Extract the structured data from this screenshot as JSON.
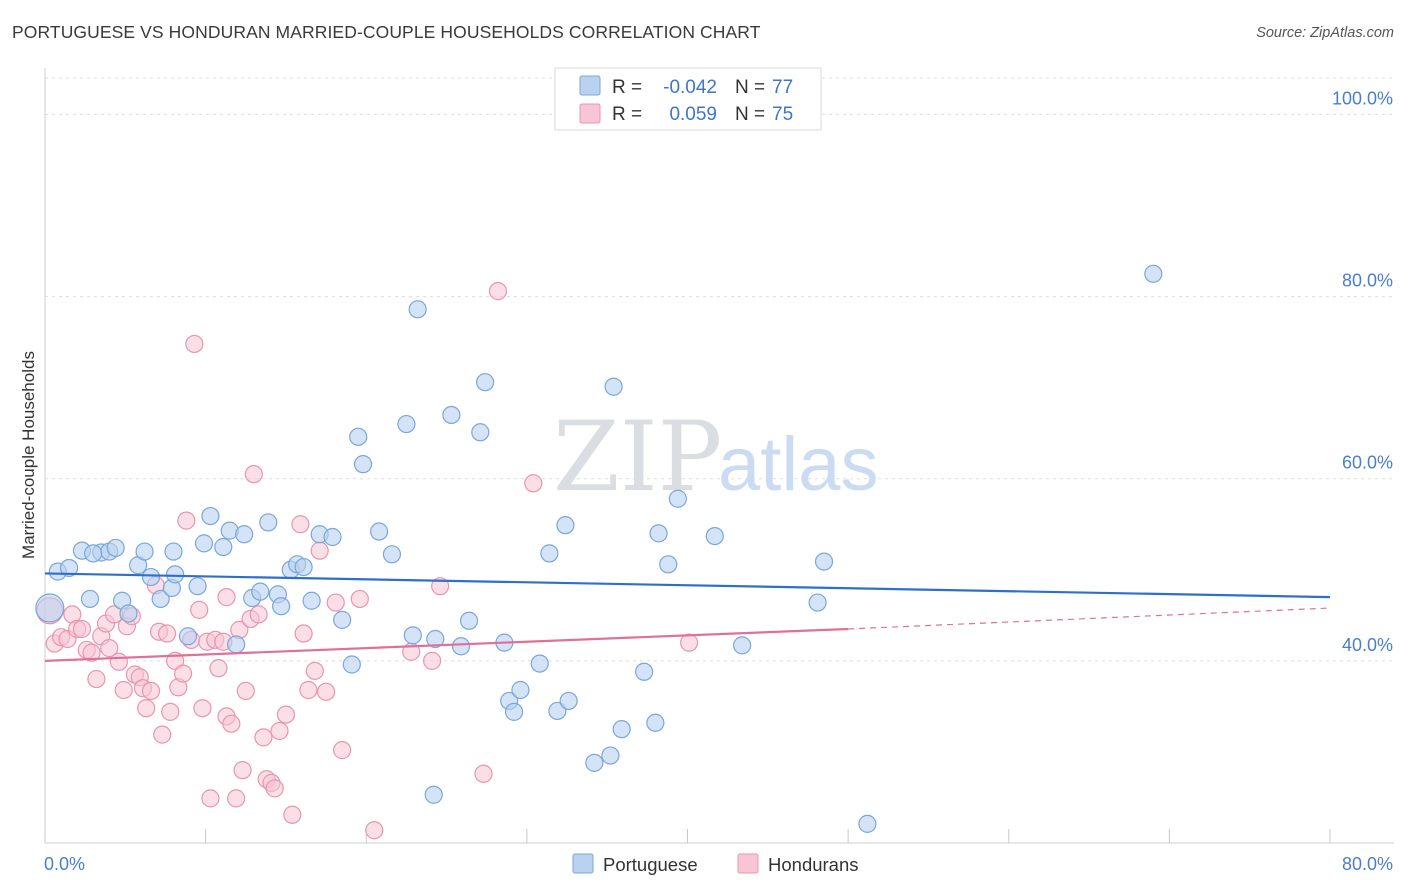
{
  "header": {
    "title": "PORTUGUESE VS HONDURAN MARRIED-COUPLE HOUSEHOLDS CORRELATION CHART",
    "source": "Source: ZipAtlas.com"
  },
  "legend_top": {
    "rows": [
      {
        "r_label": "R =",
        "r_value": "-0.042",
        "n_label": "N =",
        "n_value": "77"
      },
      {
        "r_label": "R =",
        "r_value": "0.059",
        "n_label": "N =",
        "n_value": "75"
      }
    ]
  },
  "legend_bottom": {
    "portuguese": "Portuguese",
    "hondurans": "Hondurans"
  },
  "watermark": {
    "zip": "ZIP",
    "atlas": "atlas"
  },
  "colors": {
    "blue_fill": "#b8d2f0",
    "blue_stroke": "#7aa6db",
    "blue_line": "#2f6fcc",
    "pink_fill": "#f7c5d4",
    "pink_stroke": "#e895b0",
    "pink_line": "#e0709a",
    "grid": "#dddddd",
    "tick_text": "#4a7fc9"
  },
  "chart_data": {
    "type": "scatter",
    "title": "PORTUGUESE VS HONDURAN MARRIED-COUPLE HOUSEHOLDS CORRELATION CHART",
    "xlabel": "",
    "ylabel": "Married-couple Households",
    "xlim": [
      0,
      80
    ],
    "ylim": [
      20,
      104
    ],
    "x_tick_labels": [
      "0.0%",
      "80.0%"
    ],
    "y_ticks": [
      40,
      60,
      80,
      100
    ],
    "y_tick_labels": [
      "40.0%",
      "60.0%",
      "80.0%",
      "100.0%"
    ],
    "series": [
      {
        "name": "Portuguese",
        "r": -0.042,
        "n": 77,
        "trend": {
          "x": [
            0,
            80
          ],
          "y": [
            49.6,
            47.0
          ]
        },
        "points": [
          [
            0.3,
            45.8
          ],
          [
            0.8,
            49.8
          ],
          [
            1.5,
            50.2
          ],
          [
            2.3,
            52.1
          ],
          [
            2.8,
            46.8
          ],
          [
            3.5,
            51.9
          ],
          [
            4.0,
            52.0
          ],
          [
            4.4,
            52.4
          ],
          [
            4.8,
            46.6
          ],
          [
            5.2,
            45.2
          ],
          [
            5.8,
            50.5
          ],
          [
            6.2,
            52.0
          ],
          [
            6.6,
            49.2
          ],
          [
            7.2,
            46.8
          ],
          [
            7.9,
            48.0
          ],
          [
            8.1,
            49.5
          ],
          [
            8.9,
            42.7
          ],
          [
            9.5,
            48.2
          ],
          [
            9.9,
            52.9
          ],
          [
            10.3,
            55.9
          ],
          [
            11.1,
            52.5
          ],
          [
            11.5,
            54.3
          ],
          [
            11.9,
            41.8
          ],
          [
            12.4,
            53.9
          ],
          [
            12.9,
            46.9
          ],
          [
            13.4,
            47.6
          ],
          [
            13.9,
            55.2
          ],
          [
            14.5,
            47.3
          ],
          [
            14.7,
            46.0
          ],
          [
            15.3,
            50.0
          ],
          [
            15.7,
            50.6
          ],
          [
            16.1,
            50.3
          ],
          [
            16.6,
            46.6
          ],
          [
            17.1,
            53.9
          ],
          [
            17.9,
            53.6
          ],
          [
            18.5,
            44.5
          ],
          [
            19.1,
            39.6
          ],
          [
            19.5,
            64.6
          ],
          [
            19.8,
            61.6
          ],
          [
            20.8,
            54.2
          ],
          [
            21.6,
            51.7
          ],
          [
            22.5,
            66.0
          ],
          [
            22.9,
            42.8
          ],
          [
            23.2,
            78.6
          ],
          [
            24.3,
            42.4
          ],
          [
            25.3,
            67.0
          ],
          [
            25.9,
            41.6
          ],
          [
            26.4,
            44.4
          ],
          [
            27.1,
            65.1
          ],
          [
            27.4,
            70.6
          ],
          [
            28.6,
            42.0
          ],
          [
            28.9,
            35.6
          ],
          [
            29.2,
            34.4
          ],
          [
            29.6,
            36.8
          ],
          [
            30.8,
            39.7
          ],
          [
            31.4,
            51.8
          ],
          [
            31.9,
            34.5
          ],
          [
            32.4,
            54.9
          ],
          [
            32.6,
            35.6
          ],
          [
            34.2,
            28.8
          ],
          [
            35.2,
            29.6
          ],
          [
            35.4,
            70.1
          ],
          [
            35.9,
            32.5
          ],
          [
            37.3,
            38.8
          ],
          [
            38.0,
            33.2
          ],
          [
            38.2,
            54.0
          ],
          [
            38.8,
            50.6
          ],
          [
            39.4,
            57.8
          ],
          [
            41.7,
            53.7
          ],
          [
            43.4,
            41.7
          ],
          [
            48.1,
            46.4
          ],
          [
            48.5,
            50.9
          ],
          [
            51.2,
            22.1
          ],
          [
            69.0,
            82.5
          ],
          [
            24.2,
            25.3
          ],
          [
            8.0,
            52.0
          ],
          [
            3.0,
            51.8
          ]
        ]
      },
      {
        "name": "Hondurans",
        "r": 0.059,
        "n": 75,
        "trend": {
          "x": [
            0,
            50
          ],
          "y": [
            40.0,
            43.5
          ]
        },
        "trend_dashed": {
          "x": [
            50,
            80
          ],
          "y": [
            43.5,
            45.8
          ]
        },
        "points": [
          [
            0.3,
            45.5
          ],
          [
            0.6,
            41.9
          ],
          [
            1.0,
            42.6
          ],
          [
            1.4,
            42.4
          ],
          [
            1.7,
            45.1
          ],
          [
            2.0,
            43.5
          ],
          [
            2.3,
            43.5
          ],
          [
            2.6,
            41.2
          ],
          [
            2.9,
            40.9
          ],
          [
            3.2,
            38.0
          ],
          [
            3.5,
            42.7
          ],
          [
            3.8,
            44.1
          ],
          [
            4.0,
            41.4
          ],
          [
            4.3,
            45.1
          ],
          [
            4.6,
            39.9
          ],
          [
            4.9,
            36.8
          ],
          [
            5.1,
            43.8
          ],
          [
            5.4,
            44.9
          ],
          [
            5.6,
            38.5
          ],
          [
            5.9,
            38.2
          ],
          [
            6.1,
            37.0
          ],
          [
            6.3,
            34.8
          ],
          [
            6.6,
            36.7
          ],
          [
            6.9,
            48.3
          ],
          [
            7.1,
            43.2
          ],
          [
            7.3,
            31.9
          ],
          [
            7.6,
            43.0
          ],
          [
            7.8,
            34.4
          ],
          [
            8.1,
            40.0
          ],
          [
            8.3,
            37.1
          ],
          [
            8.6,
            38.6
          ],
          [
            8.8,
            55.4
          ],
          [
            9.1,
            42.3
          ],
          [
            9.3,
            74.8
          ],
          [
            9.6,
            45.6
          ],
          [
            9.8,
            34.8
          ],
          [
            10.1,
            42.1
          ],
          [
            10.3,
            24.9
          ],
          [
            10.6,
            42.3
          ],
          [
            10.8,
            39.2
          ],
          [
            11.1,
            42.1
          ],
          [
            11.3,
            33.9
          ],
          [
            11.6,
            33.1
          ],
          [
            11.9,
            24.9
          ],
          [
            12.1,
            43.4
          ],
          [
            12.3,
            28.0
          ],
          [
            12.5,
            36.7
          ],
          [
            12.8,
            44.6
          ],
          [
            13.0,
            60.5
          ],
          [
            13.3,
            45.1
          ],
          [
            13.6,
            31.6
          ],
          [
            13.8,
            27.0
          ],
          [
            14.1,
            26.6
          ],
          [
            14.3,
            26.0
          ],
          [
            14.6,
            32.3
          ],
          [
            15.0,
            34.1
          ],
          [
            15.4,
            23.1
          ],
          [
            15.9,
            55.0
          ],
          [
            16.1,
            43.0
          ],
          [
            16.4,
            36.8
          ],
          [
            16.8,
            38.9
          ],
          [
            17.1,
            52.1
          ],
          [
            17.5,
            36.6
          ],
          [
            18.1,
            46.4
          ],
          [
            18.5,
            30.2
          ],
          [
            19.6,
            46.8
          ],
          [
            20.5,
            21.4
          ],
          [
            22.8,
            41.0
          ],
          [
            24.1,
            40.0
          ],
          [
            24.6,
            48.2
          ],
          [
            27.3,
            27.6
          ],
          [
            28.2,
            80.6
          ],
          [
            30.4,
            59.5
          ],
          [
            40.1,
            42.0
          ],
          [
            11.3,
            47.0
          ]
        ]
      }
    ]
  }
}
